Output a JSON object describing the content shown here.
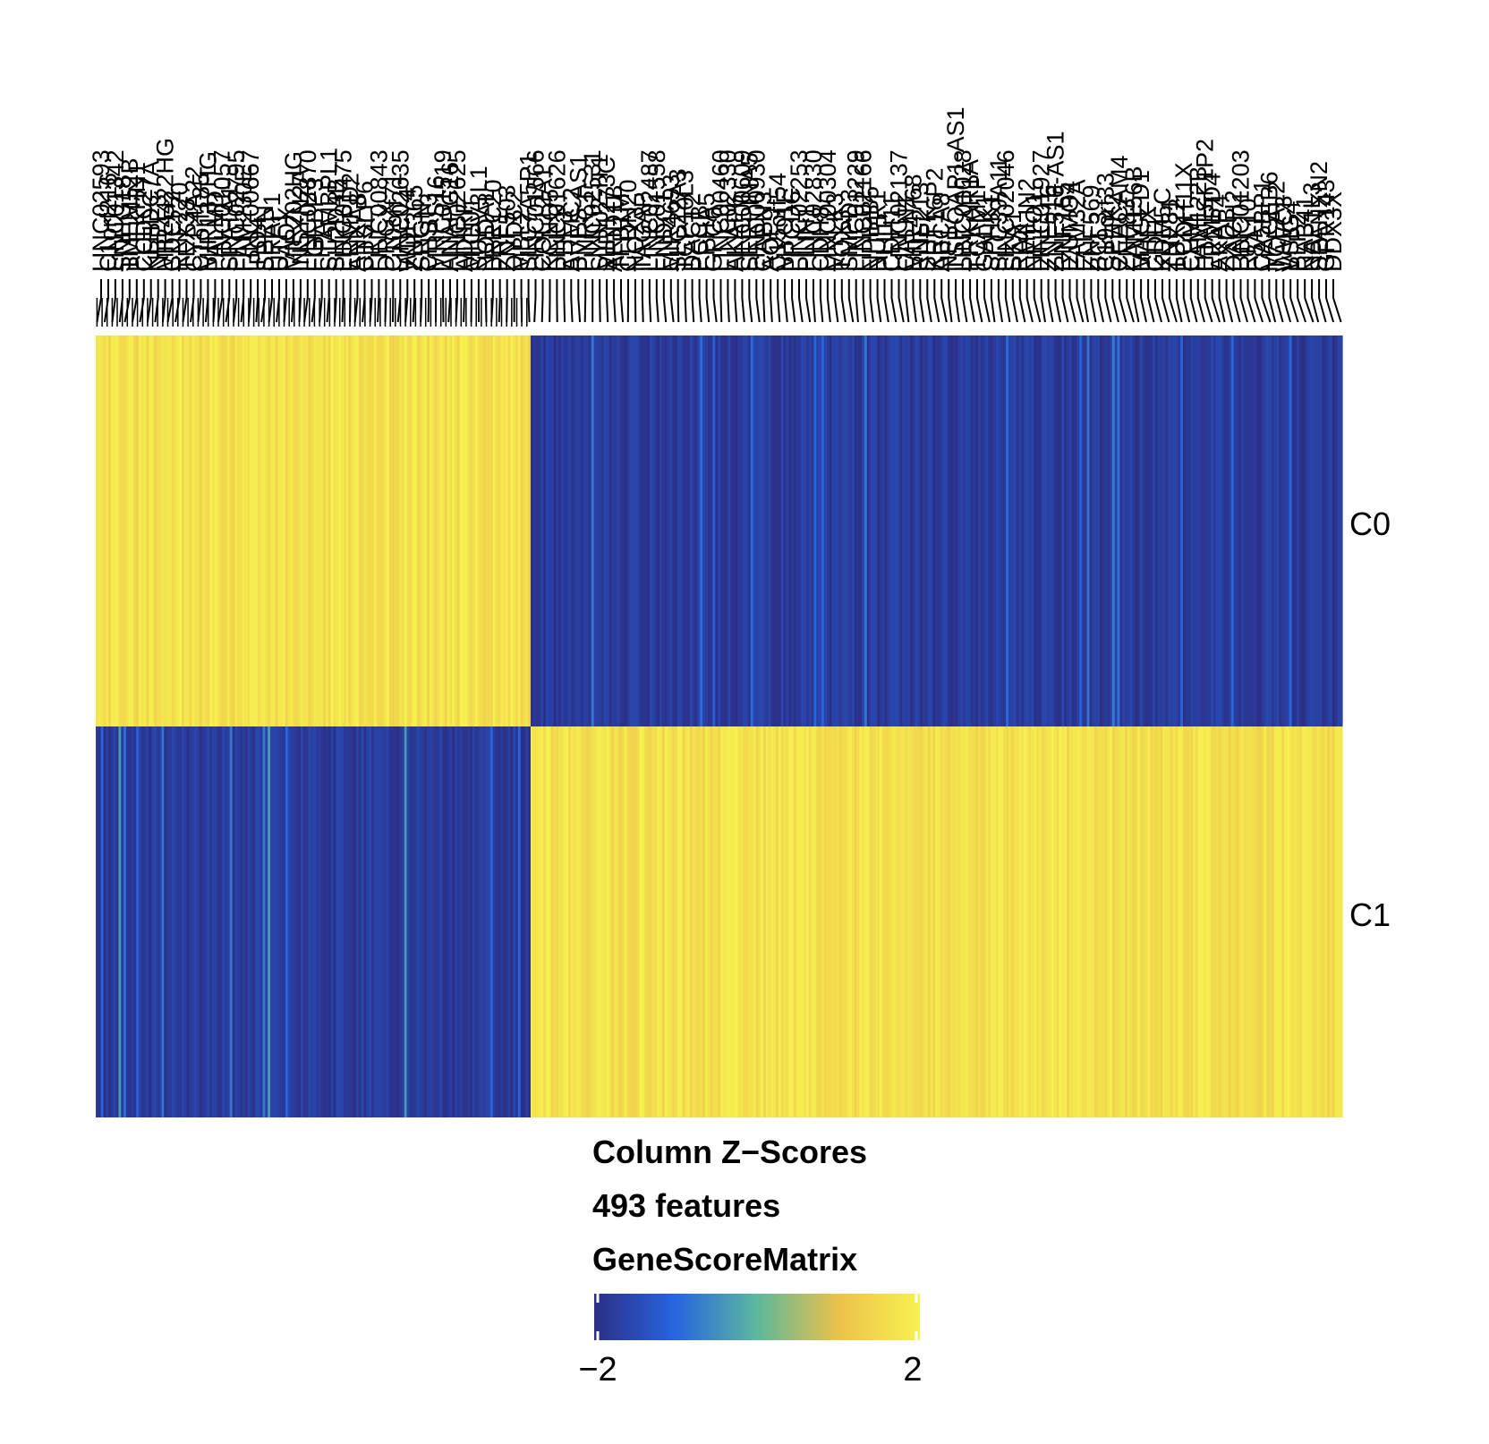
{
  "chart_data": {
    "type": "heatmap",
    "features_total": 493,
    "rows": [
      "C0",
      "C1"
    ],
    "group_boundary_col_index": 172,
    "column_labels_visible_sample": [
      "LINC02593",
      "C1orf216",
      "LINC01342",
      "SNHG18",
      "TMEM52B",
      "PLEKHN1",
      "CCDC27",
      "KLHDC7A",
      "NBPF3",
      "MIR4422HG",
      "CDCP2",
      "RNF220",
      "TEX38",
      "CYP4A22",
      "C1orf185",
      "MIR137HG",
      "PALMD",
      "LINC01057",
      "SPATA1",
      "LINC02795",
      "FAM230E",
      "LINC00667",
      "IPO4",
      "SPRN",
      "PRAP1",
      "UTF1",
      "PAOX",
      "MIR202HG",
      "INSYN2A",
      "LINC02870",
      "FGFBP3",
      "LIPA",
      "STAMBPL1",
      "SH2D4B",
      "LINC01475",
      "FRMPD2",
      "ANXA8",
      "CTSLP6",
      "PPY",
      "LINC00843",
      "DRGX",
      "C10orf71",
      "LINC02635",
      "WDFY4",
      "ZNF365",
      "SRGN",
      "CHST3",
      "MRPS16",
      "LINC01519",
      "ANAPC16",
      "LINC02625",
      "ADIRF",
      "MICU1",
      "SUPV3L1",
      "NODAL",
      "LRRC20",
      "PRF1",
      "ZNF503",
      "DYDC2",
      "MBL2",
      "SLC7A5P1",
      "LINC01566",
      "COL12A1",
      "KCNQ5",
      "LINC01626",
      "PHF3",
      "ARMC2",
      "BVES-AS1",
      "PNRC1",
      "LINC02531",
      "SYNJ2-IT1",
      "MIR1273C",
      "ARID1B",
      "TFB1M",
      "CLDN20",
      "NOX3",
      "TAGAP",
      "LINC02487",
      "LINC01558",
      "FNDC1",
      "MIR4693",
      "SLC22A3",
      "TCP10L3",
      "DACT2",
      "PCCB",
      "EPHA5",
      "GPC6",
      "LINC00460",
      "LINC02330",
      "AKAP6",
      "LINC00609",
      "SERPINA5",
      "LINC00930",
      "CAPN3",
      "AQP9",
      "C15orf54",
      "MYO1E",
      "PPCDC",
      "LINC02253",
      "PLIN1",
      "LINC02830",
      "CDH8",
      "LINC00304",
      "MYLK3",
      "TOX3",
      "SMPD3",
      "LINC01229",
      "LINC02166",
      "NPIPB5",
      "NUPR1",
      "PLLP",
      "CDH11",
      "LINC02137",
      "CALN1",
      "MIR4768",
      "RNF213",
      "SHPK",
      "KRT16P2",
      "ABCA8",
      "NF1",
      "TSPOAP1-AS1",
      "LINC01028",
      "PRKAR1A",
      "TCAM1P",
      "GALK1",
      "SPHK1",
      "SLC39A11",
      "LINC02046",
      "SKA1",
      "RAX",
      "EMILIN2",
      "NETO1",
      "LINC01927",
      "ZNF516",
      "ZNF516-AS1",
      "RNF165",
      "IZUMO4",
      "FAM32A",
      "ELL",
      "ZNF569",
      "BCL3",
      "C19orf33",
      "SPHK2",
      "CEACAM4",
      "ZNF83",
      "FAM156B",
      "MAGED1",
      "PHEX",
      "GDI1",
      "KDM5C",
      "ZNF81",
      "TBX22",
      "PCDH11X",
      "CHM",
      "FAM122B",
      "HTATSF1P2",
      "FRMPD4",
      "AKAP4",
      "ZXDB",
      "DACH2",
      "LINC01203",
      "RPL10",
      "F8A1",
      "CA5BP1",
      "MAGEB6",
      "TCEAL2",
      "WWC3",
      "VSIG4",
      "PLP2",
      "RAB41",
      "NAP1L3",
      "SPANXN2",
      "GPR143",
      "DDX3X"
    ],
    "color_scale": {
      "min": -2,
      "max": 2,
      "colors": [
        "#2b2f86",
        "#2765e0",
        "#5cb89d",
        "#ecc24a",
        "#f7f150"
      ]
    },
    "legend": {
      "title_lines": [
        "Column Z−Scores",
        "493 features",
        "GeneScoreMatrix"
      ],
      "min_label": "−2",
      "max_label": "2"
    },
    "row_labels": [
      "C0",
      "C1"
    ]
  }
}
